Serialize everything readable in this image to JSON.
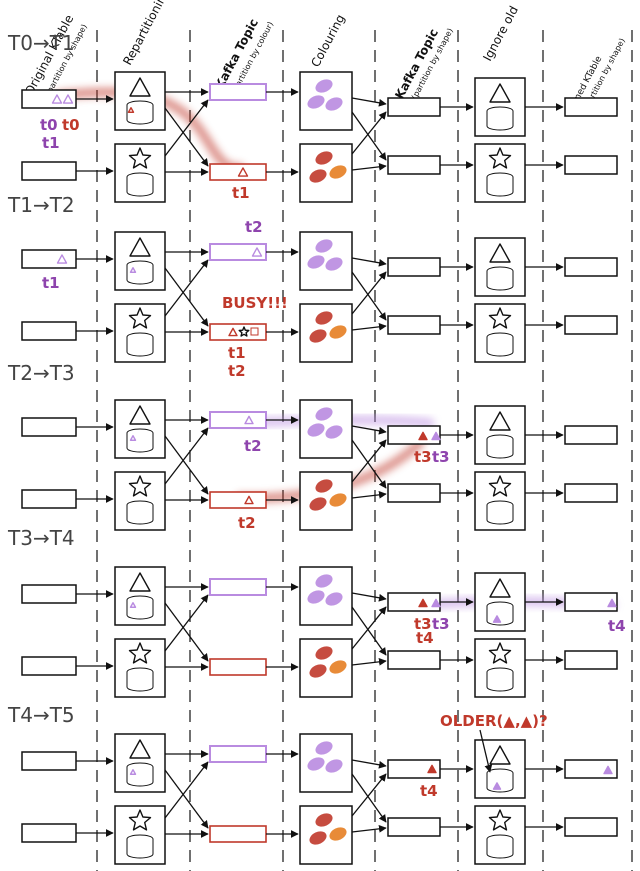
{
  "headers": {
    "col1": "Original KTable",
    "col1_sub": "(partition by shape)",
    "col2": "Repartitioning",
    "col3": "Kafka Topic",
    "col3_sub": "(partition by colour)",
    "col4": "Colouring",
    "col5": "Kafka Topic",
    "col5_sub": "(partition by shape)",
    "col6": "Ignore old",
    "col7": "Joined KTable",
    "col7_sub": "(partition by shape)"
  },
  "stages": [
    {
      "label": "T0→T1",
      "annotations": [
        {
          "text": "t0",
          "color": "#8e44ad"
        },
        {
          "text": "t0",
          "color": "#c0392b"
        },
        {
          "text": "t1",
          "color": "#8e44ad"
        },
        {
          "text": "t1",
          "color": "#c0392b"
        }
      ]
    },
    {
      "label": "T1→T2",
      "annotations": [
        {
          "text": "t1",
          "color": "#8e44ad"
        },
        {
          "text": "t2",
          "color": "#8e44ad"
        },
        {
          "text": "BUSY!!!",
          "color": "#c0392b"
        },
        {
          "text": "t1",
          "color": "#c0392b"
        },
        {
          "text": "t2",
          "color": "#c0392b"
        }
      ]
    },
    {
      "label": "T2→T3",
      "annotations": [
        {
          "text": "t2",
          "color": "#8e44ad"
        },
        {
          "text": "t2",
          "color": "#c0392b"
        },
        {
          "text": "t3",
          "color": "#c0392b"
        },
        {
          "text": "t3",
          "color": "#8e44ad"
        }
      ]
    },
    {
      "label": "T3→T4",
      "annotations": [
        {
          "text": "t3",
          "color": "#c0392b"
        },
        {
          "text": "t3",
          "color": "#8e44ad"
        },
        {
          "text": "t4",
          "color": "#8e44ad"
        },
        {
          "text": "t4",
          "color": "#c0392b"
        }
      ]
    },
    {
      "label": "T4→T5",
      "annotations": [
        {
          "text": "OLDER(▲,▲)?",
          "color": "#c0392b"
        },
        {
          "text": "t4",
          "color": "#c0392b"
        }
      ]
    }
  ],
  "colors": {
    "purple": "#b98be0",
    "purple_dark": "#8e44ad",
    "red": "#c0392b",
    "orange": "#e67e22"
  }
}
